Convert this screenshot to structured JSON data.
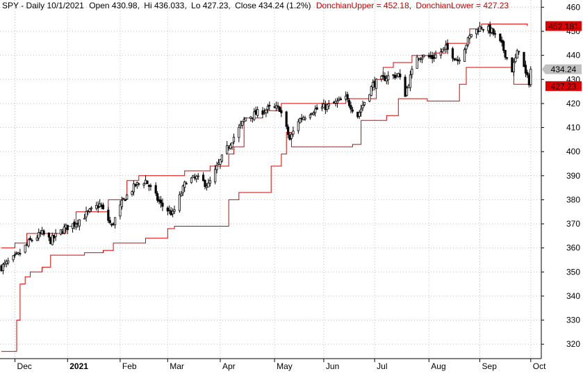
{
  "chart_data": {
    "type": "candlestick",
    "header": {
      "symbol": "SPY - Daily 10/1/2021",
      "open": "Open 430.98",
      "high": "Hi 436.033",
      "low": "Lo 427.23",
      "close": "Close 434.24 (1.2%)",
      "upper_label": "DonchianUpper = 452.18",
      "lower_label": "DonchianLower = 427.23"
    },
    "colors": {
      "donchian": "#e00000",
      "candle": "#000000",
      "grid": "#c0c0c0",
      "close_tag": "#c0c0c0"
    },
    "y_axis": {
      "ticks": [
        320,
        330,
        340,
        350,
        360,
        370,
        380,
        390,
        400,
        410,
        420,
        430,
        440,
        450,
        460
      ],
      "ylim": [
        314,
        463
      ]
    },
    "x_axis": {
      "start": "2020-11-23",
      "end": "2021-10-06",
      "months": [
        {
          "label": "Dec",
          "date": "2020-12-01",
          "bold": false
        },
        {
          "label": "2021",
          "date": "2021-01-01",
          "bold": true
        },
        {
          "label": "Feb",
          "date": "2021-02-01",
          "bold": false
        },
        {
          "label": "Mar",
          "date": "2021-03-01",
          "bold": false
        },
        {
          "label": "Apr",
          "date": "2021-04-01",
          "bold": false
        },
        {
          "label": "May",
          "date": "2021-05-03",
          "bold": false
        },
        {
          "label": "Jun",
          "date": "2021-06-01",
          "bold": false
        },
        {
          "label": "Jul",
          "date": "2021-07-01",
          "bold": false
        },
        {
          "label": "Aug",
          "date": "2021-08-02",
          "bold": false
        },
        {
          "label": "Sep",
          "date": "2021-09-01",
          "bold": false
        },
        {
          "label": "Oct",
          "date": "2021-10-01",
          "bold": false
        }
      ]
    },
    "value_tags": [
      {
        "value": 452.18,
        "label": "452.181",
        "kind": "upper"
      },
      {
        "value": 434.24,
        "label": "434.24",
        "kind": "close"
      },
      {
        "value": 427.23,
        "label": "427.23",
        "kind": "lower"
      }
    ],
    "donchian_upper": [
      [
        "2020-11-23",
        360
      ],
      [
        "2020-12-01",
        362
      ],
      [
        "2020-12-08",
        366
      ],
      [
        "2020-12-31",
        369
      ],
      [
        "2021-01-06",
        375
      ],
      [
        "2021-01-25",
        380
      ],
      [
        "2021-02-05",
        388
      ],
      [
        "2021-02-12",
        390
      ],
      [
        "2021-03-11",
        392
      ],
      [
        "2021-03-26",
        394
      ],
      [
        "2021-04-06",
        399
      ],
      [
        "2021-04-09",
        402
      ],
      [
        "2021-04-15",
        414
      ],
      [
        "2021-04-26",
        417
      ],
      [
        "2021-05-07",
        420
      ],
      [
        "2021-06-14",
        422
      ],
      [
        "2021-07-02",
        430
      ],
      [
        "2021-07-06",
        435
      ],
      [
        "2021-07-12",
        437
      ],
      [
        "2021-07-23",
        440
      ],
      [
        "2021-08-05",
        441
      ],
      [
        "2021-08-12",
        445
      ],
      [
        "2021-08-26",
        451
      ],
      [
        "2021-09-02",
        453
      ],
      [
        "2021-09-29",
        452.18
      ]
    ],
    "donchian_lower": [
      [
        "2020-11-23",
        317
      ],
      [
        "2020-12-01",
        317
      ],
      [
        "2020-12-02",
        330
      ],
      [
        "2020-12-04",
        345
      ],
      [
        "2020-12-07",
        348
      ],
      [
        "2020-12-10",
        350
      ],
      [
        "2020-12-17",
        352
      ],
      [
        "2020-12-22",
        357
      ],
      [
        "2021-01-11",
        358
      ],
      [
        "2021-01-22",
        359
      ],
      [
        "2021-01-28",
        362
      ],
      [
        "2021-02-16",
        364
      ],
      [
        "2021-03-01",
        368
      ],
      [
        "2021-03-05",
        369
      ],
      [
        "2021-04-01",
        369
      ],
      [
        "2021-04-06",
        380
      ],
      [
        "2021-04-12",
        383
      ],
      [
        "2021-04-27",
        383
      ],
      [
        "2021-05-01",
        394
      ],
      [
        "2021-05-07",
        399
      ],
      [
        "2021-05-10",
        408
      ],
      [
        "2021-05-13",
        402
      ],
      [
        "2021-06-01",
        402
      ],
      [
        "2021-06-18",
        403
      ],
      [
        "2021-06-23",
        413
      ],
      [
        "2021-07-08",
        415
      ],
      [
        "2021-07-15",
        422
      ],
      [
        "2021-07-21",
        422
      ],
      [
        "2021-08-01",
        421
      ],
      [
        "2021-08-16",
        421
      ],
      [
        "2021-08-20",
        428
      ],
      [
        "2021-08-24",
        435
      ],
      [
        "2021-09-14",
        435
      ],
      [
        "2021-09-21",
        428
      ],
      [
        "2021-09-30",
        428
      ],
      [
        "2021-10-01",
        427.23
      ]
    ],
    "price_anchors": [
      [
        "2020-11-23",
        352
      ],
      [
        "2020-11-27",
        354
      ],
      [
        "2020-12-03",
        357
      ],
      [
        "2020-12-10",
        363
      ],
      [
        "2020-12-17",
        366
      ],
      [
        "2020-12-22",
        363
      ],
      [
        "2020-12-30",
        368
      ],
      [
        "2021-01-05",
        370
      ],
      [
        "2021-01-12",
        374
      ],
      [
        "2021-01-20",
        378
      ],
      [
        "2021-01-27",
        369
      ],
      [
        "2021-02-03",
        380
      ],
      [
        "2021-02-10",
        386
      ],
      [
        "2021-02-16",
        388
      ],
      [
        "2021-02-25",
        378
      ],
      [
        "2021-03-04",
        374
      ],
      [
        "2021-03-12",
        388
      ],
      [
        "2021-03-18",
        389
      ],
      [
        "2021-03-25",
        386
      ],
      [
        "2021-04-01",
        396
      ],
      [
        "2021-04-08",
        405
      ],
      [
        "2021-04-16",
        414
      ],
      [
        "2021-04-23",
        416
      ],
      [
        "2021-04-30",
        418
      ],
      [
        "2021-05-06",
        418
      ],
      [
        "2021-05-12",
        405
      ],
      [
        "2021-05-17",
        413
      ],
      [
        "2021-05-25",
        417
      ],
      [
        "2021-06-04",
        419
      ],
      [
        "2021-06-14",
        422
      ],
      [
        "2021-06-21",
        415
      ],
      [
        "2021-06-30",
        428
      ],
      [
        "2021-07-08",
        431
      ],
      [
        "2021-07-15",
        432
      ],
      [
        "2021-07-19",
        424
      ],
      [
        "2021-07-26",
        440
      ],
      [
        "2021-08-04",
        439
      ],
      [
        "2021-08-12",
        443
      ],
      [
        "2021-08-19",
        438
      ],
      [
        "2021-08-27",
        449
      ],
      [
        "2021-09-02",
        452
      ],
      [
        "2021-09-08",
        450
      ],
      [
        "2021-09-14",
        444
      ],
      [
        "2021-09-20",
        434
      ],
      [
        "2021-09-24",
        443
      ],
      [
        "2021-09-28",
        432
      ],
      [
        "2021-09-30",
        429
      ],
      [
        "2021-10-01",
        434.24
      ]
    ]
  }
}
